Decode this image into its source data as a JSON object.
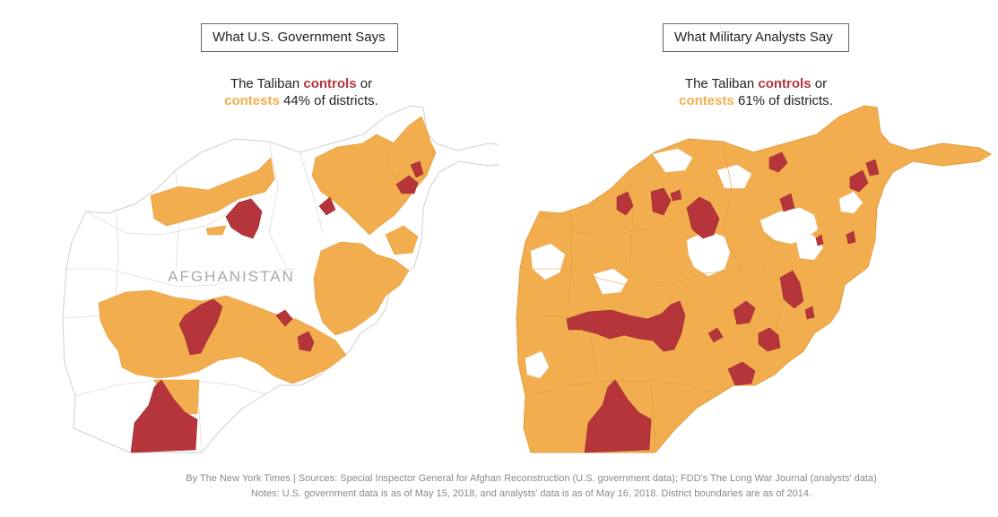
{
  "colors": {
    "controls": "#b5353b",
    "contests": "#f2ae4e",
    "government": "#ffffff",
    "border": "#cfcfcf"
  },
  "panels": [
    {
      "title": "What U.S. Government Says",
      "subtitle": {
        "pre": "The Taliban ",
        "controls": "controls",
        "mid": " or",
        "contests": "contests",
        "post": " 44% of districts."
      },
      "country_label": "AFGHANISTAN"
    },
    {
      "title": "What Military Analysts Say",
      "subtitle": {
        "pre": "The Taliban ",
        "controls": "controls",
        "mid": " or",
        "contests": "contests",
        "post": " 61% of districts."
      },
      "country_label": ""
    }
  ],
  "footer": {
    "line1": "By The New York Times | Sources: Special Inspector General for Afghan Reconstruction (U.S. government data); FDD's The Long War Journal (analysts' data)",
    "line2": "Notes: U.S. government data is as of May 15, 2018, and analysts' data is as of May 16, 2018. District boundaries are as of 2014."
  }
}
